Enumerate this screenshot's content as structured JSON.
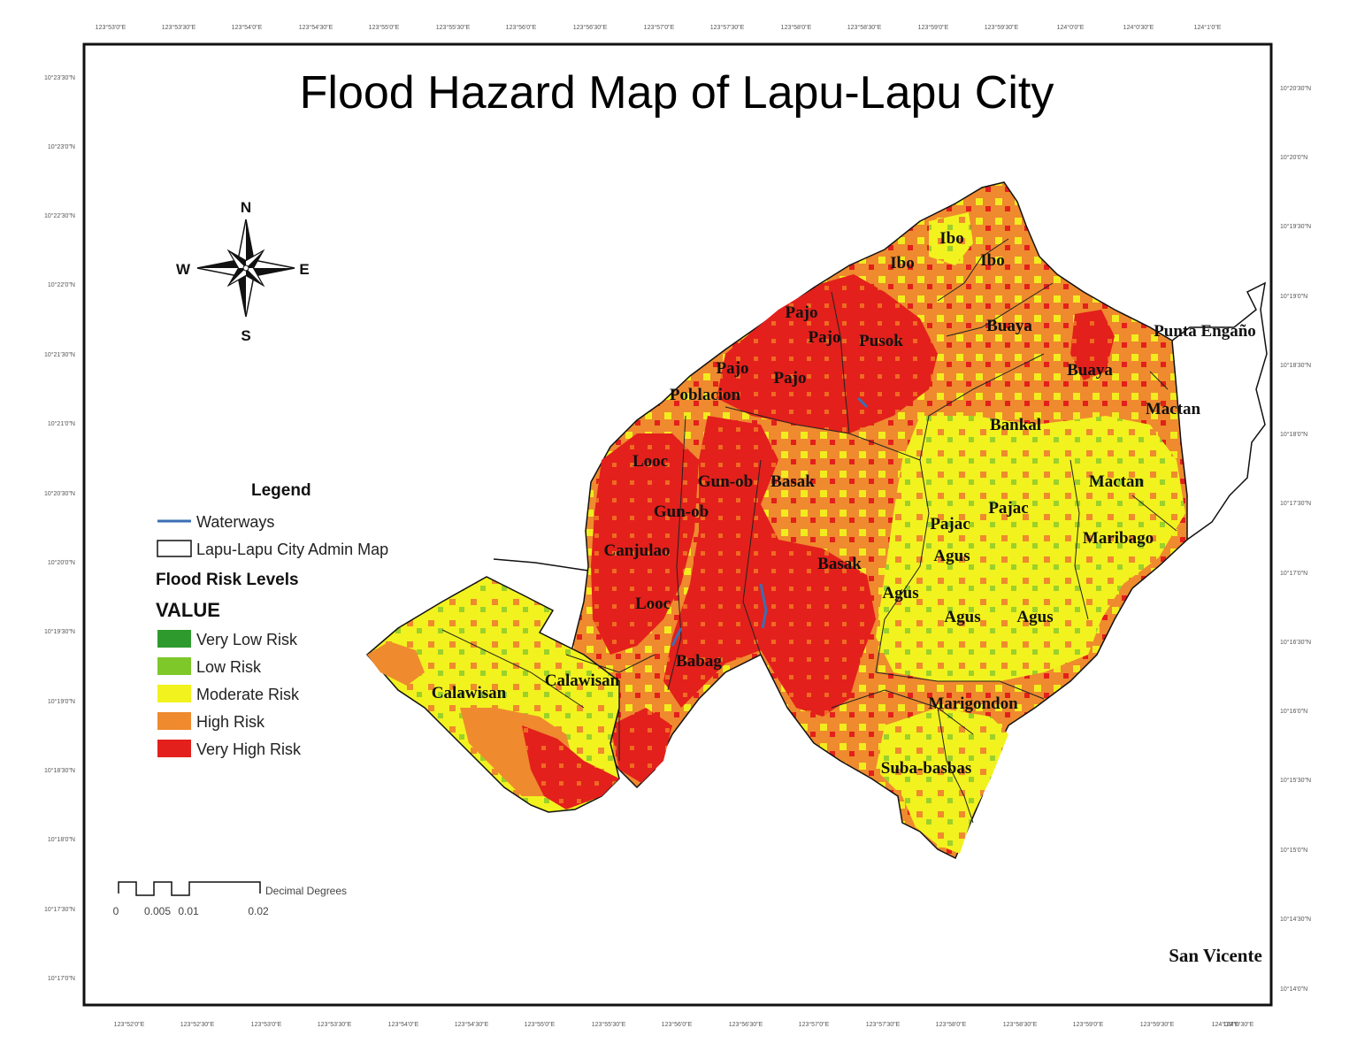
{
  "map": {
    "title": "Flood Hazard Map of Lapu-Lapu City",
    "graticule": {
      "top": [
        "123°53'0\"E",
        "123°53'30\"E",
        "123°54'0\"E",
        "123°54'30\"E",
        "123°55'0\"E",
        "123°55'30\"E",
        "123°56'0\"E",
        "123°56'30\"E",
        "123°57'0\"E",
        "123°57'30\"E",
        "123°58'0\"E",
        "123°58'30\"E",
        "123°59'0\"E",
        "123°59'30\"E",
        "124°0'0\"E",
        "124°0'30\"E",
        "124°1'0\"E"
      ],
      "bottom": [
        "123°52'0\"E",
        "123°52'30\"E",
        "123°53'0\"E",
        "123°53'30\"E",
        "123°54'0\"E",
        "123°54'30\"E",
        "123°55'0\"E",
        "123°55'30\"E",
        "123°56'0\"E",
        "123°56'30\"E",
        "123°57'0\"E",
        "123°57'30\"E",
        "123°58'0\"E",
        "123°58'30\"E",
        "123°59'0\"E",
        "123°59'30\"E",
        "124°0'0\"E",
        "124°0'30\"E"
      ],
      "left": [
        "10°23'30\"N",
        "10°23'0\"N",
        "10°22'30\"N",
        "10°22'0\"N",
        "10°21'30\"N",
        "10°21'0\"N",
        "10°20'30\"N",
        "10°20'0\"N",
        "10°19'30\"N",
        "10°19'0\"N",
        "10°18'30\"N",
        "10°18'0\"N",
        "10°17'30\"N",
        "10°17'0\"N"
      ],
      "right": [
        "10°20'30\"N",
        "10°20'0\"N",
        "10°19'30\"N",
        "10°19'0\"N",
        "10°18'30\"N",
        "10°18'0\"N",
        "10°17'30\"N",
        "10°17'0\"N",
        "10°16'30\"N",
        "10°16'0\"N",
        "10°15'30\"N",
        "10°15'0\"N",
        "10°14'30\"N",
        "10°14'0\"N"
      ]
    },
    "places": [
      {
        "name": "Ibo"
      },
      {
        "name": "Ibo"
      },
      {
        "name": "Ibo"
      },
      {
        "name": "Pajo"
      },
      {
        "name": "Pajo"
      },
      {
        "name": "Pusok"
      },
      {
        "name": "Pajo"
      },
      {
        "name": "Pajo"
      },
      {
        "name": "Poblacion"
      },
      {
        "name": "Buaya"
      },
      {
        "name": "Buaya"
      },
      {
        "name": "Punta Engaño"
      },
      {
        "name": "Mactan"
      },
      {
        "name": "Bankal"
      },
      {
        "name": "Looc"
      },
      {
        "name": "Gun-ob"
      },
      {
        "name": "Basak"
      },
      {
        "name": "Gun-ob"
      },
      {
        "name": "Mactan"
      },
      {
        "name": "Pajac"
      },
      {
        "name": "Pajac"
      },
      {
        "name": "Maribago"
      },
      {
        "name": "Agus"
      },
      {
        "name": "Canjulao"
      },
      {
        "name": "Basak"
      },
      {
        "name": "Agus"
      },
      {
        "name": "Looc"
      },
      {
        "name": "Agus"
      },
      {
        "name": "Agus"
      },
      {
        "name": "Babag"
      },
      {
        "name": "Calawisan"
      },
      {
        "name": "Calawisan"
      },
      {
        "name": "Marigondon"
      },
      {
        "name": "Suba-basbas"
      },
      {
        "name": "San Vicente"
      }
    ],
    "compass": {
      "n": "N",
      "s": "S",
      "e": "E",
      "w": "W"
    },
    "scale_bar": {
      "ticks": [
        "0",
        "0.005",
        "0.01",
        "0.02"
      ],
      "unit": "Decimal Degrees"
    },
    "legend": {
      "title": "Legend",
      "waterways": "Waterways",
      "admin": "Lapu-Lapu City Admin Map",
      "risk_heading": "Flood Risk Levels",
      "value_heading": "VALUE",
      "classes": [
        {
          "label": "Very Low Risk",
          "color": "#2e9a2e"
        },
        {
          "label": "Low Risk",
          "color": "#7ec82a"
        },
        {
          "label": "Moderate Risk",
          "color": "#f2f21e"
        },
        {
          "label": "High Risk",
          "color": "#ef8a2e"
        },
        {
          "label": "Very High Risk",
          "color": "#e3201b"
        }
      ],
      "waterway_color": "#3a6fb5"
    }
  }
}
